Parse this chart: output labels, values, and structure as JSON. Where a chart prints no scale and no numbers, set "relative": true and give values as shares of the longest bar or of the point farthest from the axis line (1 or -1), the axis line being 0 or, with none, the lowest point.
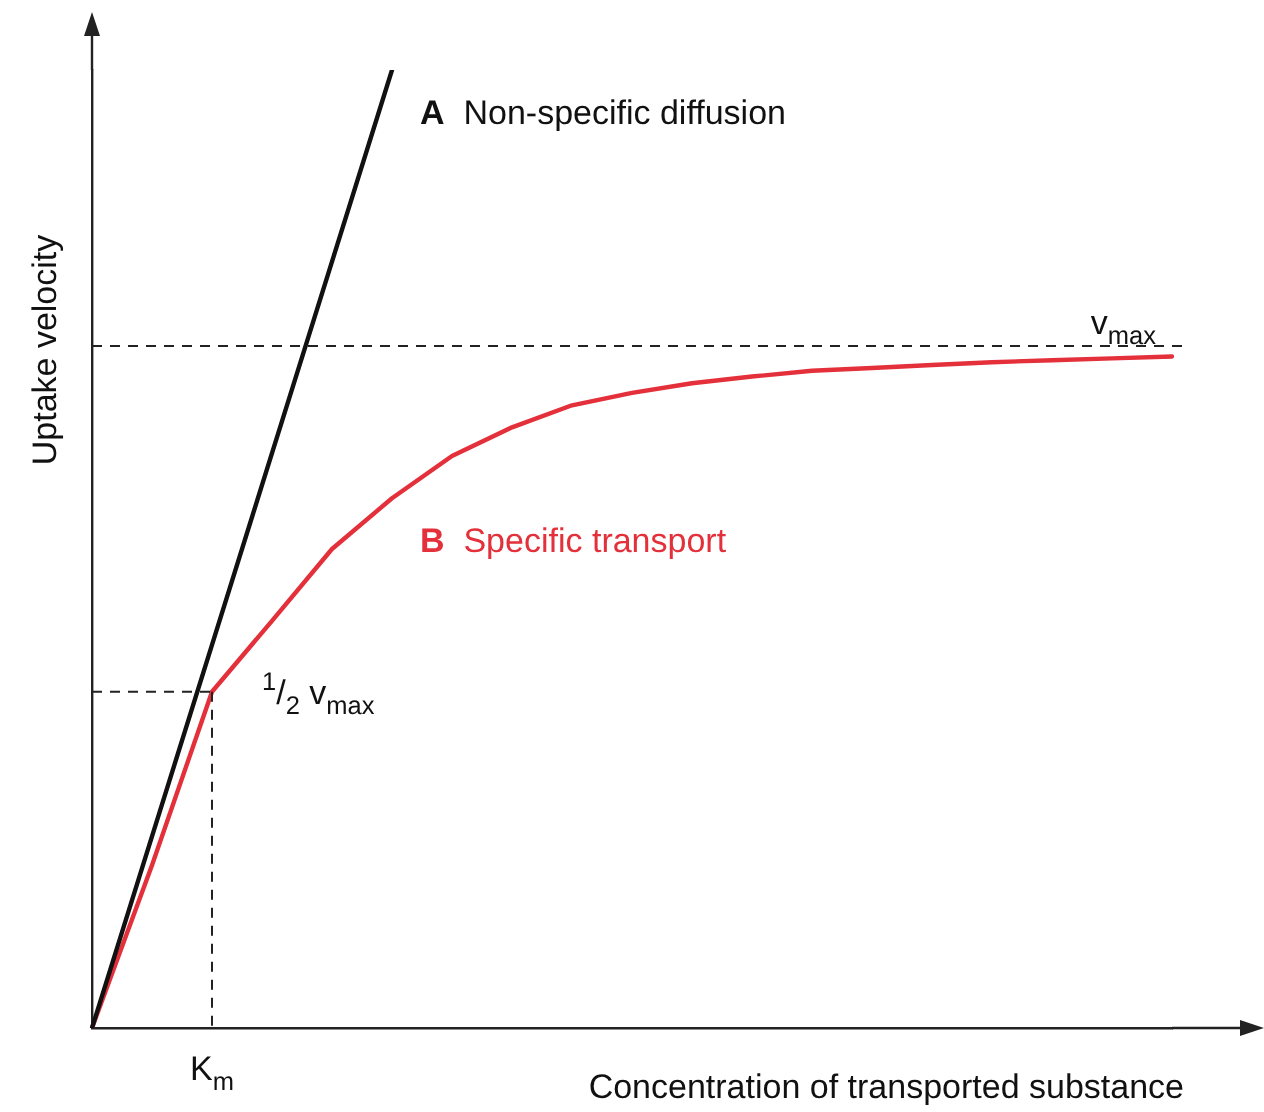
{
  "chart_data": {
    "type": "line",
    "relative": true,
    "xlabel": "Concentration of transported substance",
    "ylabel": "Uptake velocity",
    "grid": false,
    "legend": false,
    "marker": "none",
    "line_style": "solid",
    "categories": [
      null,
      null,
      null,
      null,
      null,
      null,
      null,
      null,
      null,
      null,
      null,
      null,
      null,
      null,
      null,
      null,
      null,
      null,
      null
    ],
    "series": [
      {
        "name": "A Non-specific diffusion",
        "color": "#111111",
        "values": [
          0,
          0.2,
          0.4,
          0.6,
          0.8,
          1,
          null,
          null,
          null,
          null,
          null,
          null,
          null,
          null,
          null,
          null,
          null,
          null,
          null
        ]
      },
      {
        "name": "B Specific transport",
        "color": "#e3303a",
        "values": [
          0,
          0.17,
          0.351,
          0.425,
          0.5,
          0.553,
          0.597,
          0.627,
          0.65,
          0.663,
          0.673,
          0.68,
          0.686,
          0.689,
          0.692,
          0.695,
          0.697,
          0.699,
          0.701
        ]
      }
    ],
    "ref_lines": [
      {
        "axis": "y",
        "value": 0.712,
        "label": "v$_{max}$",
        "line_style": "dashed"
      },
      {
        "axis": "y",
        "value": 0.351,
        "label": "$^{1}$/$_{2}$ v$_{max}$",
        "line_style": "dashed"
      }
    ],
    "annotations": [
      "K$_{m}$"
    ]
  }
}
